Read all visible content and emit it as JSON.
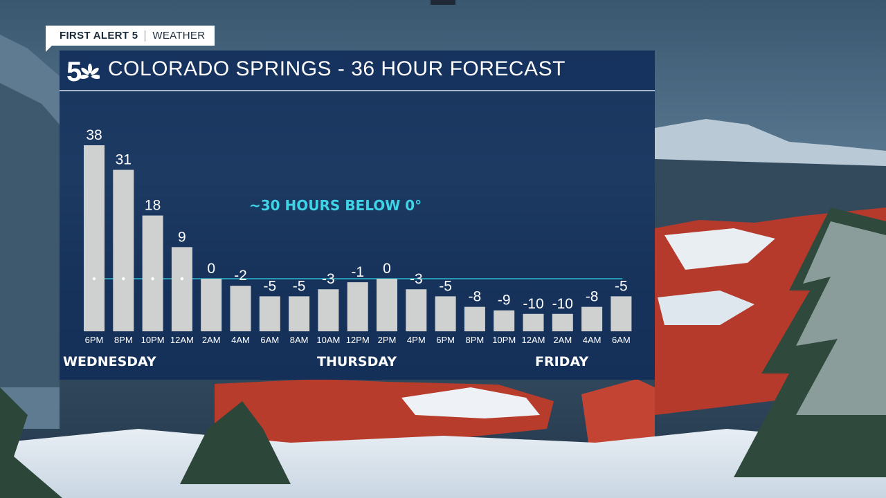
{
  "header": {
    "brand": "FIRST ALERT 5",
    "section": "WEATHER"
  },
  "title": "COLORADO SPRINGS - 36 HOUR FORECAST",
  "logo_icon": "nbc-5-logo-icon",
  "annotation": "~30 HOURS BELOW 0°",
  "days": [
    {
      "label": "WEDNESDAY"
    },
    {
      "label": "THURSDAY"
    },
    {
      "label": "FRIDAY"
    }
  ],
  "colors": {
    "bar": "#cfd1d0",
    "zero_line": "#2fb7c9",
    "annotation": "#3fd3e6",
    "panel": "#0e2a58"
  },
  "chart_data": {
    "type": "bar",
    "categories": [
      "6PM",
      "8PM",
      "10PM",
      "12AM",
      "2AM",
      "4AM",
      "6AM",
      "8AM",
      "10AM",
      "12PM",
      "2PM",
      "4PM",
      "6PM",
      "8PM",
      "10PM",
      "12AM",
      "2AM",
      "4AM",
      "6AM"
    ],
    "values": [
      38,
      31,
      18,
      9,
      0,
      -2,
      -5,
      -5,
      -3,
      -1,
      0,
      -3,
      -5,
      -8,
      -9,
      -10,
      -10,
      -8,
      -5
    ],
    "value_labels": [
      "38",
      "31",
      "18",
      "9",
      "0",
      "-2",
      "-5",
      "-5",
      "-3",
      "-1",
      "0",
      "-3",
      "-5",
      "-8",
      "-9",
      "-10",
      "-10",
      "-8",
      "-5"
    ],
    "ylim": [
      -30,
      38
    ],
    "reference_line": 0
  }
}
